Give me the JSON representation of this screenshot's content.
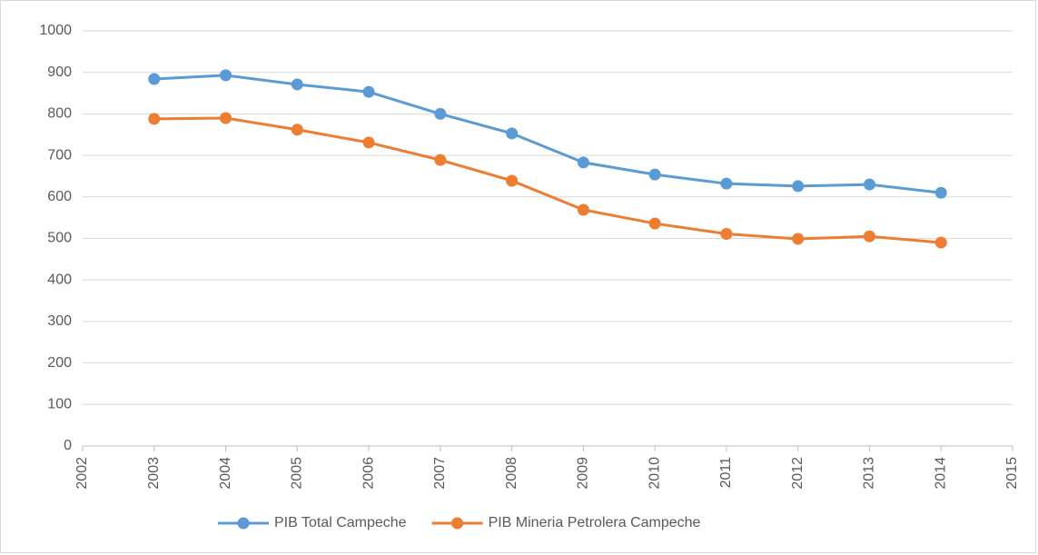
{
  "chart_data": {
    "type": "line",
    "x": [
      2003,
      2004,
      2005,
      2006,
      2007,
      2008,
      2009,
      2010,
      2011,
      2012,
      2013,
      2014
    ],
    "series": [
      {
        "name": "PIB Total Campeche",
        "color": "#5b9bd5",
        "values": [
          884,
          893,
          871,
          853,
          800,
          753,
          683,
          654,
          632,
          626,
          630,
          610
        ]
      },
      {
        "name": "PIB Mineria Petrolera Campeche",
        "color": "#ed7d31",
        "values": [
          788,
          790,
          762,
          731,
          689,
          639,
          569,
          536,
          511,
          499,
          505,
          490
        ]
      }
    ],
    "xlim": [
      2002,
      2015
    ],
    "xticks": [
      2002,
      2003,
      2004,
      2005,
      2006,
      2007,
      2008,
      2009,
      2010,
      2011,
      2012,
      2013,
      2014,
      2015
    ],
    "ylim": [
      0,
      1000
    ],
    "yticks": [
      0,
      100,
      200,
      300,
      400,
      500,
      600,
      700,
      800,
      900,
      1000
    ],
    "grid": true,
    "legend": "bottom"
  }
}
